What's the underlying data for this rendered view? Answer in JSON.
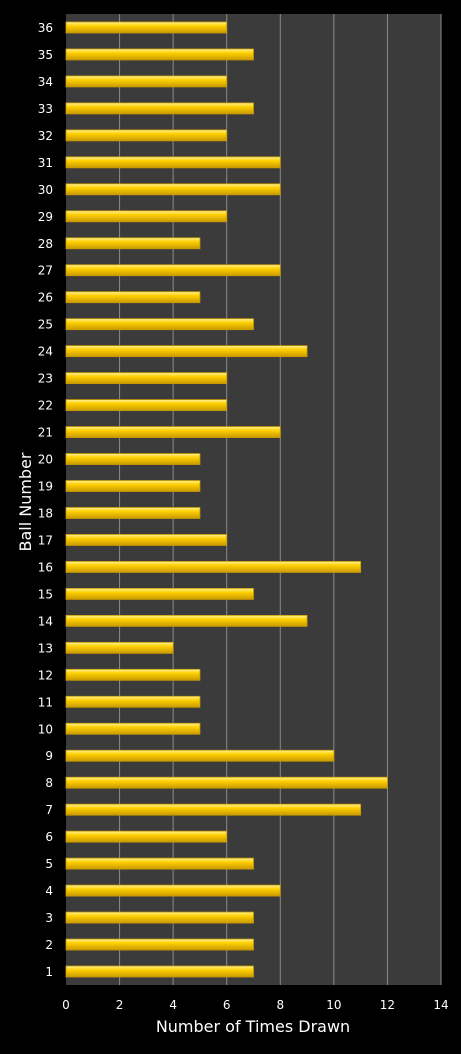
{
  "colors": {
    "background": "#000000",
    "plot_area": "#3b3b3b",
    "grid": "#8a8a8a",
    "bar_fill": "#ffd000",
    "bar_highlight": "#fff3a0",
    "bar_shadow": "#c99a00",
    "text": "#ffffff"
  },
  "chart_data": {
    "type": "bar",
    "orientation": "horizontal",
    "categories": [
      "1",
      "2",
      "3",
      "4",
      "5",
      "6",
      "7",
      "8",
      "9",
      "10",
      "11",
      "12",
      "13",
      "14",
      "15",
      "16",
      "17",
      "18",
      "19",
      "20",
      "21",
      "22",
      "23",
      "24",
      "25",
      "26",
      "27",
      "28",
      "29",
      "30",
      "31",
      "32",
      "33",
      "34",
      "35",
      "36"
    ],
    "values": [
      7,
      7,
      7,
      8,
      7,
      6,
      11,
      12,
      10,
      5,
      5,
      5,
      4,
      9,
      7,
      11,
      6,
      5,
      5,
      5,
      8,
      6,
      6,
      9,
      7,
      5,
      8,
      5,
      6,
      8,
      8,
      6,
      7,
      6,
      7,
      6
    ],
    "xlabel": "Number of Times Drawn",
    "ylabel": "Ball Number",
    "xlim": [
      0,
      14
    ],
    "xticks": [
      0,
      2,
      4,
      6,
      8,
      10,
      12,
      14
    ],
    "grid": "vertical"
  }
}
